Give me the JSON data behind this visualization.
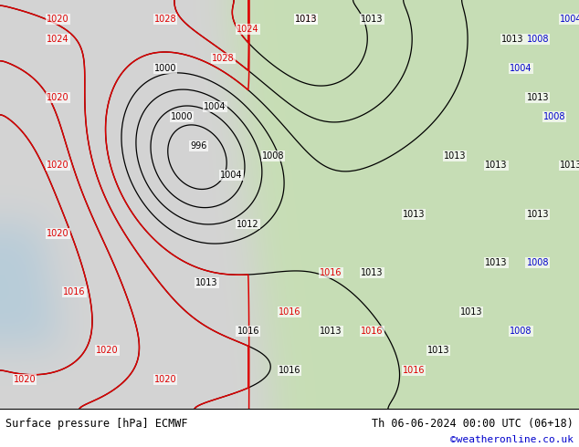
{
  "title_left": "Surface pressure [hPa] ECMWF",
  "title_right": "Th 06-06-2024 00:00 UTC (06+18)",
  "watermark": "©weatheronline.co.uk",
  "watermark_color": "#0000cc",
  "bg_color_west": "#d4d4d4",
  "bg_color_east": "#c8ddb8",
  "sea_color": "#b8ccd8",
  "contour_black": "#000000",
  "contour_red": "#dd0000",
  "contour_blue": "#0000cc",
  "title_fontsize": 9,
  "bottom_bar_color": "#ffffff"
}
